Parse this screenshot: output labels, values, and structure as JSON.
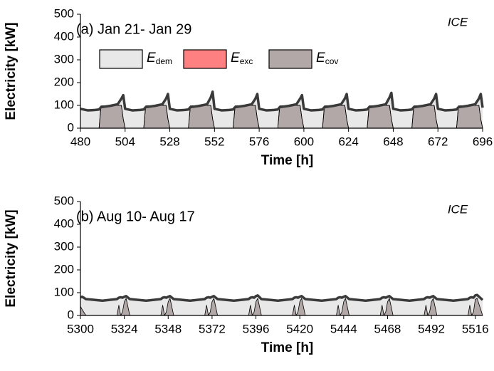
{
  "chart_data": [
    {
      "type": "area",
      "title": "(a) Jan 21- Jan 29",
      "annotation": "ICE",
      "xlabel": "Time [h]",
      "ylabel": "Electricity [kW]",
      "legend": true,
      "xlim": [
        480,
        696
      ],
      "xticks": [
        480,
        504,
        528,
        552,
        576,
        600,
        624,
        648,
        672,
        696
      ],
      "ylim": [
        0,
        500
      ],
      "yticks": [
        0,
        100,
        200,
        300,
        400,
        500
      ],
      "x": [
        480,
        484,
        488,
        490,
        491,
        496,
        500,
        502,
        503,
        504,
        508,
        512,
        514,
        515,
        520,
        524,
        526,
        527,
        528,
        532,
        536,
        538,
        539,
        544,
        548,
        550,
        551,
        552,
        556,
        560,
        562,
        563,
        568,
        572,
        574,
        575,
        576,
        580,
        584,
        586,
        587,
        592,
        596,
        598,
        599,
        600,
        604,
        608,
        610,
        611,
        616,
        620,
        622,
        623,
        624,
        628,
        632,
        634,
        635,
        640,
        644,
        646,
        647,
        648,
        652,
        656,
        658,
        659,
        664,
        668,
        670,
        671,
        672,
        676,
        680,
        682,
        683,
        688,
        692,
        694,
        695,
        696
      ],
      "series": [
        {
          "name": "E",
          "subscript": "dem",
          "color": "#e8e8e8",
          "line_color": "#3a3a3a",
          "values": [
            85,
            78,
            80,
            82,
            92,
            98,
            105,
            130,
            145,
            85,
            78,
            80,
            82,
            92,
            98,
            105,
            130,
            150,
            85,
            78,
            80,
            82,
            92,
            98,
            105,
            135,
            160,
            85,
            78,
            80,
            82,
            92,
            98,
            105,
            130,
            150,
            85,
            78,
            80,
            82,
            92,
            98,
            105,
            130,
            145,
            85,
            78,
            80,
            82,
            92,
            98,
            105,
            130,
            150,
            85,
            78,
            80,
            82,
            92,
            98,
            105,
            135,
            155,
            85,
            78,
            80,
            82,
            92,
            98,
            105,
            130,
            150,
            85,
            78,
            80,
            82,
            92,
            98,
            105,
            130,
            150,
            90
          ]
        },
        {
          "name": "E",
          "subscript": "exc",
          "color": "#ff8080",
          "values": [
            0,
            0,
            0,
            0,
            6,
            2,
            0,
            0,
            0,
            0,
            0,
            0,
            0,
            6,
            2,
            0,
            0,
            0,
            0,
            0,
            0,
            0,
            6,
            2,
            0,
            0,
            0,
            0,
            0,
            0,
            0,
            6,
            2,
            0,
            0,
            0,
            0,
            0,
            0,
            0,
            6,
            2,
            0,
            0,
            0,
            0,
            0,
            0,
            0,
            6,
            2,
            0,
            0,
            0,
            0,
            0,
            0,
            0,
            6,
            2,
            0,
            0,
            0,
            0,
            0,
            0,
            0,
            6,
            2,
            0,
            0,
            0,
            0,
            0,
            0,
            0,
            6,
            2,
            0,
            0,
            0,
            0
          ]
        },
        {
          "name": "E",
          "subscript": "cov",
          "color": "#b3a8a8",
          "values": [
            0,
            0,
            0,
            0,
            92,
            98,
            100,
            100,
            40,
            0,
            0,
            0,
            0,
            92,
            98,
            100,
            100,
            40,
            0,
            0,
            0,
            0,
            92,
            98,
            100,
            100,
            40,
            0,
            0,
            0,
            0,
            92,
            98,
            100,
            100,
            40,
            0,
            0,
            0,
            0,
            92,
            98,
            100,
            100,
            40,
            0,
            0,
            0,
            0,
            92,
            98,
            100,
            100,
            40,
            0,
            0,
            0,
            0,
            92,
            98,
            100,
            100,
            40,
            0,
            0,
            0,
            0,
            92,
            98,
            100,
            100,
            40,
            0,
            0,
            0,
            0,
            92,
            98,
            100,
            100,
            40,
            0
          ]
        }
      ]
    },
    {
      "type": "area",
      "title": "(b) Aug 10- Aug 17",
      "annotation": "ICE",
      "xlabel": "Time [h]",
      "ylabel": "Electricity [kW]",
      "legend": false,
      "xlim": [
        5300,
        5520
      ],
      "xticks": [
        5300,
        5324,
        5348,
        5372,
        5396,
        5420,
        5444,
        5468,
        5492,
        5516
      ],
      "ylim": [
        0,
        500
      ],
      "yticks": [
        0,
        100,
        200,
        300,
        400,
        500
      ],
      "x": [
        5300,
        5301,
        5303,
        5312,
        5320,
        5321,
        5322,
        5323,
        5324,
        5325,
        5327,
        5336,
        5344,
        5345,
        5346,
        5347,
        5348,
        5349,
        5351,
        5360,
        5368,
        5369,
        5370,
        5371,
        5372,
        5373,
        5375,
        5384,
        5392,
        5393,
        5394,
        5395,
        5396,
        5397,
        5399,
        5408,
        5416,
        5417,
        5418,
        5419,
        5420,
        5421,
        5423,
        5432,
        5440,
        5441,
        5442,
        5443,
        5444,
        5445,
        5447,
        5456,
        5464,
        5465,
        5466,
        5467,
        5468,
        5469,
        5471,
        5480,
        5488,
        5489,
        5490,
        5491,
        5492,
        5493,
        5495,
        5504,
        5512,
        5513,
        5514,
        5515,
        5516,
        5517,
        5520
      ],
      "series": [
        {
          "name": "E",
          "subscript": "dem",
          "color": "#e8e8e8",
          "line_color": "#3a3a3a",
          "values": [
            80,
            82,
            72,
            65,
            72,
            78,
            80,
            78,
            82,
            85,
            72,
            65,
            72,
            78,
            80,
            78,
            82,
            85,
            72,
            65,
            72,
            78,
            80,
            78,
            82,
            85,
            72,
            65,
            72,
            78,
            80,
            78,
            85,
            88,
            72,
            65,
            72,
            78,
            80,
            78,
            82,
            85,
            72,
            65,
            72,
            78,
            80,
            78,
            82,
            85,
            72,
            65,
            72,
            78,
            80,
            78,
            82,
            85,
            72,
            65,
            72,
            78,
            80,
            78,
            82,
            85,
            72,
            65,
            72,
            78,
            80,
            78,
            88,
            90,
            68
          ]
        },
        {
          "name": "E",
          "subscript": "cov",
          "color": "#b3a8a8",
          "values": [
            40,
            25,
            0,
            0,
            0,
            45,
            0,
            15,
            60,
            75,
            0,
            0,
            0,
            45,
            0,
            15,
            60,
            75,
            0,
            0,
            0,
            45,
            0,
            15,
            60,
            75,
            0,
            0,
            0,
            45,
            0,
            15,
            60,
            75,
            0,
            0,
            0,
            45,
            0,
            15,
            60,
            75,
            0,
            0,
            0,
            45,
            0,
            15,
            60,
            75,
            0,
            0,
            0,
            45,
            0,
            15,
            60,
            75,
            0,
            0,
            0,
            45,
            0,
            15,
            60,
            75,
            0,
            0,
            0,
            45,
            0,
            15,
            70,
            75,
            0
          ]
        }
      ]
    }
  ]
}
